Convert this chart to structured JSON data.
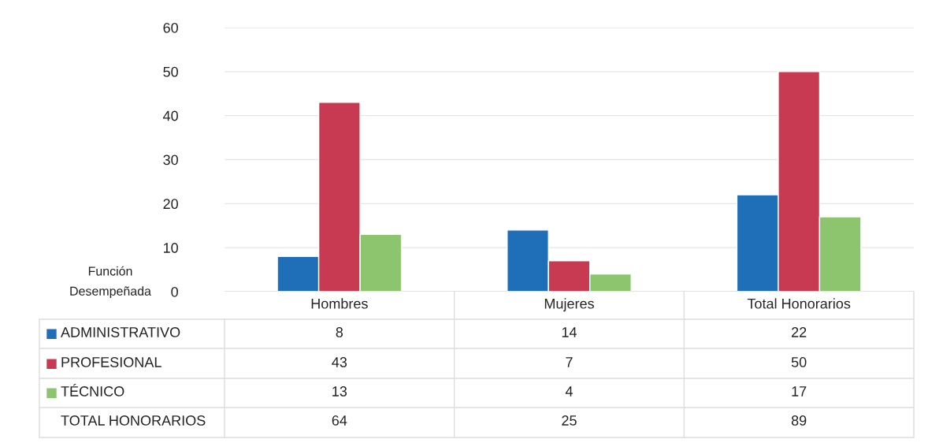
{
  "chart_data": {
    "type": "bar",
    "legend_title": "Función Desempeñada",
    "categories": [
      "Hombres",
      "Mujeres",
      "Total Honorarios"
    ],
    "series": [
      {
        "name": "ADMINISTRATIVO",
        "color": "#1f6fb8",
        "values": [
          8,
          14,
          22
        ]
      },
      {
        "name": "PROFESIONAL",
        "color": "#c83a52",
        "values": [
          43,
          7,
          50
        ]
      },
      {
        "name": "TÉCNICO",
        "color": "#8cc56e",
        "values": [
          13,
          4,
          17
        ]
      }
    ],
    "annotations": [
      "TOTAL HONORARIOS",
      "64",
      "25",
      "89"
    ],
    "ylim": [
      0,
      60
    ],
    "yticks": [
      0,
      10,
      20,
      30,
      40,
      50,
      60
    ],
    "grid": "y",
    "legend": "bottom",
    "data_labels": true
  }
}
